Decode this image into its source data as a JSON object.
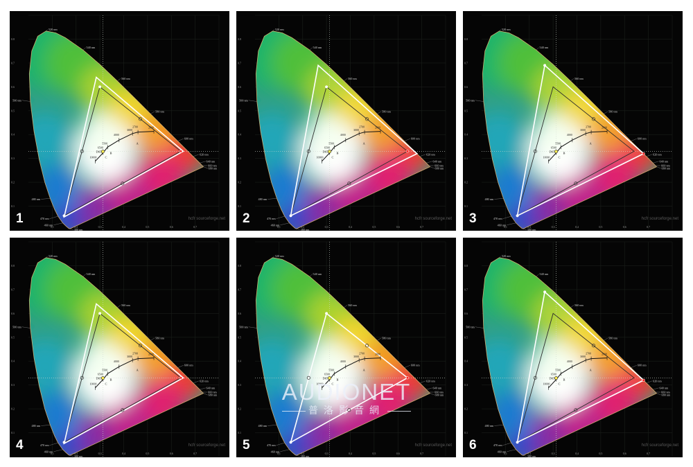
{
  "chart_data": {
    "type": "scatter",
    "xlim": [
      0,
      0.8
    ],
    "ylim": [
      0,
      0.9
    ],
    "x_ticks": [
      "0.1",
      "0.2",
      "0.3",
      "0.4",
      "0.5",
      "0.6",
      "0.7"
    ],
    "y_ticks": [
      "0.1",
      "0.2",
      "0.3",
      "0.4",
      "0.5",
      "0.6",
      "0.7",
      "0.8"
    ],
    "spectral_labels": [
      "380 nm",
      "460 nm",
      "470 nm",
      "480 nm",
      "500 nm",
      "520 nm",
      "540 nm",
      "560 nm",
      "580 nm",
      "600 nm",
      "620 nm",
      "640 nm",
      "660 nm",
      "680 nm"
    ],
    "spectral_locus": [
      {
        "nm": 380,
        "x": 0.1741,
        "y": 0.005
      },
      {
        "nm": 430,
        "x": 0.169,
        "y": 0.0069
      },
      {
        "nm": 450,
        "x": 0.1566,
        "y": 0.0177
      },
      {
        "nm": 460,
        "x": 0.144,
        "y": 0.0297
      },
      {
        "nm": 470,
        "x": 0.1241,
        "y": 0.0578
      },
      {
        "nm": 475,
        "x": 0.1096,
        "y": 0.0868
      },
      {
        "nm": 480,
        "x": 0.0913,
        "y": 0.1327
      },
      {
        "nm": 485,
        "x": 0.0687,
        "y": 0.2007
      },
      {
        "nm": 490,
        "x": 0.0454,
        "y": 0.295
      },
      {
        "nm": 495,
        "x": 0.0235,
        "y": 0.4127
      },
      {
        "nm": 500,
        "x": 0.0082,
        "y": 0.5384
      },
      {
        "nm": 505,
        "x": 0.0039,
        "y": 0.6548
      },
      {
        "nm": 510,
        "x": 0.0139,
        "y": 0.7502
      },
      {
        "nm": 515,
        "x": 0.0389,
        "y": 0.812
      },
      {
        "nm": 520,
        "x": 0.0743,
        "y": 0.8338
      },
      {
        "nm": 525,
        "x": 0.1142,
        "y": 0.8262
      },
      {
        "nm": 530,
        "x": 0.1547,
        "y": 0.8059
      },
      {
        "nm": 540,
        "x": 0.2296,
        "y": 0.7543
      },
      {
        "nm": 550,
        "x": 0.3016,
        "y": 0.6923
      },
      {
        "nm": 560,
        "x": 0.3731,
        "y": 0.6245
      },
      {
        "nm": 570,
        "x": 0.4441,
        "y": 0.5547
      },
      {
        "nm": 580,
        "x": 0.5125,
        "y": 0.4866
      },
      {
        "nm": 590,
        "x": 0.5752,
        "y": 0.4242
      },
      {
        "nm": 600,
        "x": 0.627,
        "y": 0.3725
      },
      {
        "nm": 620,
        "x": 0.6915,
        "y": 0.3083
      },
      {
        "nm": 640,
        "x": 0.719,
        "y": 0.2809
      },
      {
        "nm": 660,
        "x": 0.73,
        "y": 0.27
      },
      {
        "nm": 680,
        "x": 0.7347,
        "y": 0.2653
      }
    ],
    "cct_curve": [
      {
        "label": "10000",
        "x": 0.2807,
        "y": 0.2883
      },
      {
        "label": "6500",
        "x": 0.3135,
        "y": 0.3236
      },
      {
        "label": "5500",
        "x": 0.3324,
        "y": 0.3474
      },
      {
        "label": "4000",
        "x": 0.3805,
        "y": 0.3768
      },
      {
        "label": "3000",
        "x": 0.4369,
        "y": 0.4041
      },
      {
        "label": "2700",
        "x": 0.4599,
        "y": 0.4106
      },
      {
        "label": "2000",
        "x": 0.5267,
        "y": 0.4133
      }
    ],
    "illuminant_labels": [
      "D65",
      "A",
      "B",
      "C"
    ],
    "white_point": {
      "label": "D65",
      "x": 0.3127,
      "y": 0.329
    },
    "reference_gamut": {
      "name": "Rec.709",
      "red": {
        "x": 0.64,
        "y": 0.33
      },
      "green": {
        "x": 0.3,
        "y": 0.6
      },
      "blue": {
        "x": 0.15,
        "y": 0.06
      }
    },
    "panels": [
      {
        "label": "1",
        "gamut": {
          "red": {
            "x": 0.65,
            "y": 0.33
          },
          "green": {
            "x": 0.285,
            "y": 0.64
          },
          "blue": {
            "x": 0.15,
            "y": 0.055
          }
        },
        "primary_dots": "reference"
      },
      {
        "label": "2",
        "gamut": {
          "red": {
            "x": 0.68,
            "y": 0.32
          },
          "green": {
            "x": 0.265,
            "y": 0.69
          },
          "blue": {
            "x": 0.15,
            "y": 0.06
          }
        },
        "primary_dots": "reference"
      },
      {
        "label": "3",
        "gamut": {
          "red": {
            "x": 0.68,
            "y": 0.32
          },
          "green": {
            "x": 0.265,
            "y": 0.69
          },
          "blue": {
            "x": 0.15,
            "y": 0.06
          }
        },
        "primary_dots": "gamut"
      },
      {
        "label": "4",
        "gamut": {
          "red": {
            "x": 0.65,
            "y": 0.33
          },
          "green": {
            "x": 0.285,
            "y": 0.64
          },
          "blue": {
            "x": 0.15,
            "y": 0.055
          }
        },
        "primary_dots": "reference"
      },
      {
        "label": "5",
        "gamut": {
          "red": {
            "x": 0.64,
            "y": 0.33
          },
          "green": {
            "x": 0.3,
            "y": 0.6
          },
          "blue": {
            "x": 0.15,
            "y": 0.06
          }
        },
        "primary_dots": "reference"
      },
      {
        "label": "6",
        "gamut": {
          "red": {
            "x": 0.68,
            "y": 0.32
          },
          "green": {
            "x": 0.265,
            "y": 0.69
          },
          "blue": {
            "x": 0.15,
            "y": 0.06
          }
        },
        "primary_dots": "gamut"
      }
    ]
  },
  "credit": "hcfr sourceforge.net",
  "watermark": {
    "main": "AUDIONET",
    "sub": "普洛影音網"
  }
}
